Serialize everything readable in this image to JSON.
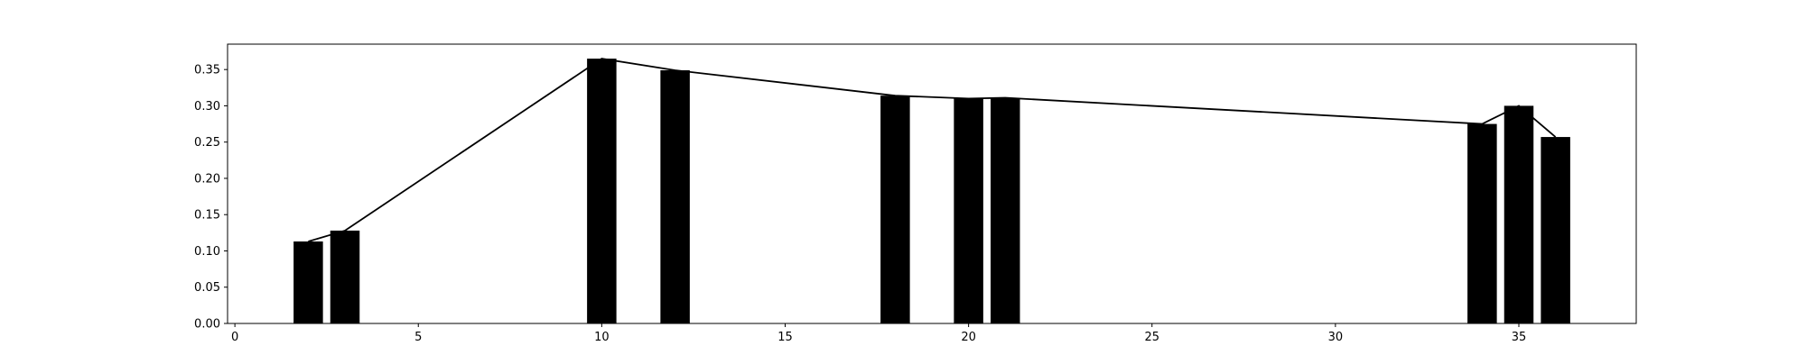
{
  "chart_data": {
    "type": "bar",
    "title": "",
    "xlabel": "",
    "ylabel": "",
    "xlim": [
      -0.2,
      38.2
    ],
    "ylim": [
      0.0,
      0.385
    ],
    "grid": false,
    "x_ticks": [
      0,
      5,
      10,
      15,
      20,
      25,
      30,
      35
    ],
    "y_ticks": [
      0.0,
      0.05,
      0.1,
      0.15,
      0.2,
      0.25,
      0.3,
      0.35
    ],
    "bar_width": 0.8,
    "bar_color": "#000000",
    "line_color": "#000000",
    "series": [
      {
        "x": [
          2,
          3,
          10,
          12,
          18,
          20,
          21,
          34,
          35,
          36
        ],
        "values": [
          0.113,
          0.128,
          0.365,
          0.349,
          0.314,
          0.31,
          0.311,
          0.275,
          0.3,
          0.257
        ]
      }
    ]
  }
}
